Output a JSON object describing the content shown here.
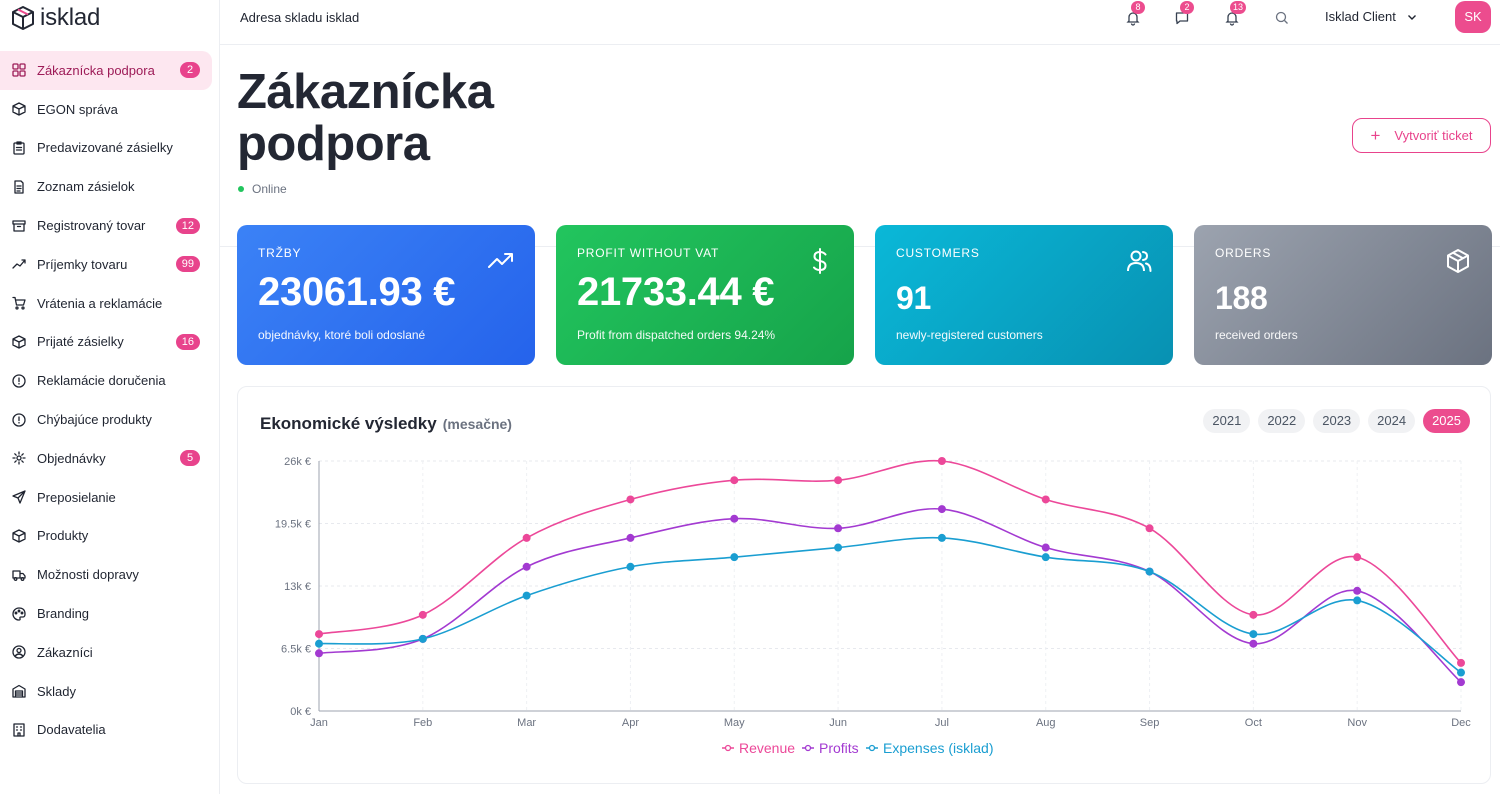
{
  "app": {
    "name": "isklad"
  },
  "header": {
    "title": "Adresa skladu isklad",
    "client": "Isklad Client",
    "avatar": "SK",
    "badges": [
      "8",
      "2",
      "13"
    ]
  },
  "sidebar": {
    "items": [
      {
        "label": "Zákaznícka podpora",
        "badge": "2",
        "icon": "grid-icon",
        "active": true
      },
      {
        "label": "EGON správa",
        "badge": "",
        "icon": "box-icon"
      },
      {
        "label": "Predavizované zásielky",
        "badge": "",
        "icon": "clipboard-icon"
      },
      {
        "label": "Zoznam zásielok",
        "badge": "",
        "icon": "document-icon"
      },
      {
        "label": "Registrovaný tovar",
        "badge": "12",
        "icon": "archive-icon"
      },
      {
        "label": "Príjemky tovaru",
        "badge": "99",
        "icon": "trend-icon"
      },
      {
        "label": "Vrátenia a reklamácie",
        "badge": "",
        "icon": "cart-icon"
      },
      {
        "label": "Prijaté zásielky",
        "badge": "16",
        "icon": "box-icon"
      },
      {
        "label": "Reklamácie doručenia",
        "badge": "",
        "icon": "alert-circle-icon"
      },
      {
        "label": "Chýbajúce produkty",
        "badge": "",
        "icon": "alert-circle-icon"
      },
      {
        "label": "Objednávky",
        "badge": "5",
        "icon": "gear-icon"
      },
      {
        "label": "Preposielanie",
        "badge": "",
        "icon": "send-icon"
      },
      {
        "label": "Produkty",
        "badge": "",
        "icon": "box-icon"
      },
      {
        "label": "Možnosti dopravy",
        "badge": "",
        "icon": "truck-icon"
      },
      {
        "label": "Branding",
        "badge": "",
        "icon": "palette-icon"
      },
      {
        "label": "Zákazníci",
        "badge": "",
        "icon": "user-circle-icon"
      },
      {
        "label": "Sklady",
        "badge": "",
        "icon": "warehouse-icon"
      },
      {
        "label": "Dodavatelia",
        "badge": "",
        "icon": "building-icon"
      }
    ]
  },
  "page": {
    "title": "Zákaznícka podpora",
    "status": "Online",
    "create_ticket": "Vytvoriť ticket"
  },
  "cards": [
    {
      "label": "TRŽBY",
      "value": "23061.93 €",
      "sub": "objednávky, ktoré boli odoslané",
      "icon": "trending-up-icon"
    },
    {
      "label": "PROFIT WITHOUT VAT",
      "value": "21733.44 €",
      "sub": "Profit from dispatched orders 94.24%",
      "icon": "dollar-icon"
    },
    {
      "label": "CUSTOMERS",
      "value": "91",
      "sub": "newly-registered customers",
      "icon": "users-icon"
    },
    {
      "label": "ORDERS",
      "value": "188",
      "sub": "received orders",
      "icon": "package-icon"
    }
  ],
  "chart_panel": {
    "title": "Ekonomické výsledky",
    "subtitle": "(mesačne)",
    "years": [
      "2021",
      "2022",
      "2023",
      "2024",
      "2025"
    ],
    "active_year": "2025"
  },
  "colors": {
    "accent": "#ec4c8e",
    "revenue": "#ec4899",
    "profits": "#a33ad1",
    "expenses": "#1a9ed1"
  },
  "chart_data": {
    "type": "line",
    "x": [
      "Jan",
      "Feb",
      "Mar",
      "Apr",
      "May",
      "Jun",
      "Jul",
      "Aug",
      "Sep",
      "Oct",
      "Nov",
      "Dec"
    ],
    "ylim": [
      0,
      26000
    ],
    "yticks": [
      "0k €",
      "6.5k €",
      "13k €",
      "19.5k €",
      "26k €"
    ],
    "series": [
      {
        "name": "Revenue",
        "values": [
          8000,
          10000,
          18000,
          22000,
          24000,
          24000,
          26000,
          22000,
          19000,
          10000,
          16000,
          5000
        ]
      },
      {
        "name": "Profits",
        "values": [
          6000,
          7500,
          15000,
          18000,
          20000,
          19000,
          21000,
          17000,
          14500,
          7000,
          12500,
          3000
        ]
      },
      {
        "name": "Expenses (isklad)",
        "values": [
          7000,
          7500,
          12000,
          15000,
          16000,
          17000,
          18000,
          16000,
          14500,
          8000,
          11500,
          4000
        ]
      }
    ],
    "grid": true,
    "legend": "bottom"
  }
}
